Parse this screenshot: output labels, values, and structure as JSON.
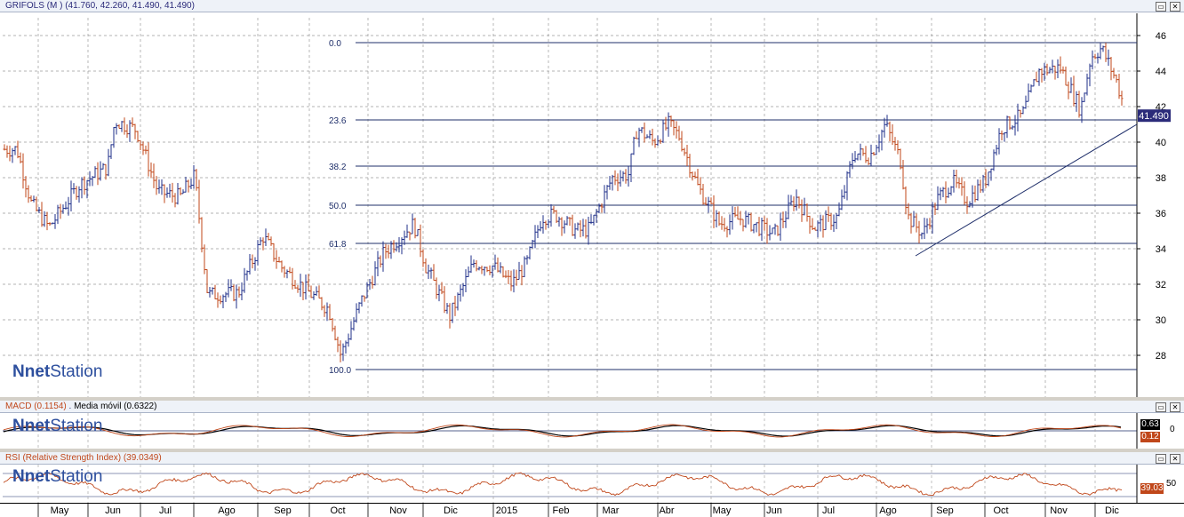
{
  "main": {
    "title": "GRIFOLS (M ) (41.760, 42.260, 41.490, 41.490)",
    "last_price": "41.490",
    "last_price_color": "#2b2b7a",
    "fib_labels": [
      "0.0",
      "23.6",
      "38.2",
      "50.0",
      "61.8",
      "100.0"
    ],
    "fib_values": [
      45.6,
      41.25,
      38.65,
      36.45,
      34.3,
      27.2
    ],
    "trendline": {
      "start": [
        "Ago",
        33.6
      ],
      "end": [
        "Dic",
        41.0
      ]
    }
  },
  "macd": {
    "title": "MACD (0.1154)",
    "title_sep": " . ",
    "ma_label": "Media móvil (0.6322)",
    "badge_ma": "0.63",
    "badge_macd": "0.12",
    "zero_label": "0"
  },
  "rsi": {
    "title": "RSI (Relative Strength Index) (39.0349)",
    "badge": "39.03",
    "level_label": "50"
  },
  "logo": {
    "text_prefix": "net",
    "text_suffix": "Station"
  },
  "window_buttons": {
    "restore": "▭",
    "close": "✕"
  },
  "colors": {
    "up": "#1f2f8a",
    "down": "#c0471a",
    "grid": "#9a9a9a",
    "fib": "#1f2f6a"
  },
  "chart_data": {
    "type": "bar",
    "subtype": "ohlc",
    "title": "GRIFOLS (M ) (41.760, 42.260, 41.490, 41.490)",
    "last": {
      "open": 41.76,
      "high": 42.26,
      "low": 41.49,
      "close": 41.49
    },
    "ylim": [
      26,
      46
    ],
    "yticks": [
      28,
      30,
      32,
      34,
      36,
      38,
      40,
      42,
      44,
      46
    ],
    "x_labels": [
      "May",
      "Jun",
      "Jul",
      "Ago",
      "Sep",
      "Oct",
      "Nov",
      "Dic",
      "2015",
      "Feb",
      "Mar",
      "Abr",
      "May",
      "Jun",
      "Jul",
      "Ago",
      "Sep",
      "Oct",
      "Nov",
      "Dic"
    ],
    "series": [
      {
        "name": "GRIFOLS",
        "x": [
          "May",
          "Jun",
          "Jul",
          "Ago",
          "Sep",
          "Oct",
          "Nov",
          "Dic",
          "2015",
          "Feb",
          "Mar",
          "Abr",
          "May",
          "Jun",
          "Jul",
          "Ago",
          "Sep",
          "Oct",
          "Nov",
          "Dic"
        ],
        "values": [
          37.5,
          40.6,
          37.6,
          31.5,
          34.8,
          27.8,
          34.4,
          30.2,
          31.5,
          36.6,
          40.6,
          39.6,
          35.5,
          36.0,
          38.9,
          37.4,
          36.2,
          39.8,
          44.0,
          41.5
        ]
      }
    ],
    "fibonacci": {
      "levels": [
        "0.0",
        "23.6",
        "38.2",
        "50.0",
        "61.8",
        "100.0"
      ],
      "values": [
        45.6,
        41.25,
        38.65,
        36.45,
        34.3,
        27.2
      ]
    },
    "grid": true
  }
}
